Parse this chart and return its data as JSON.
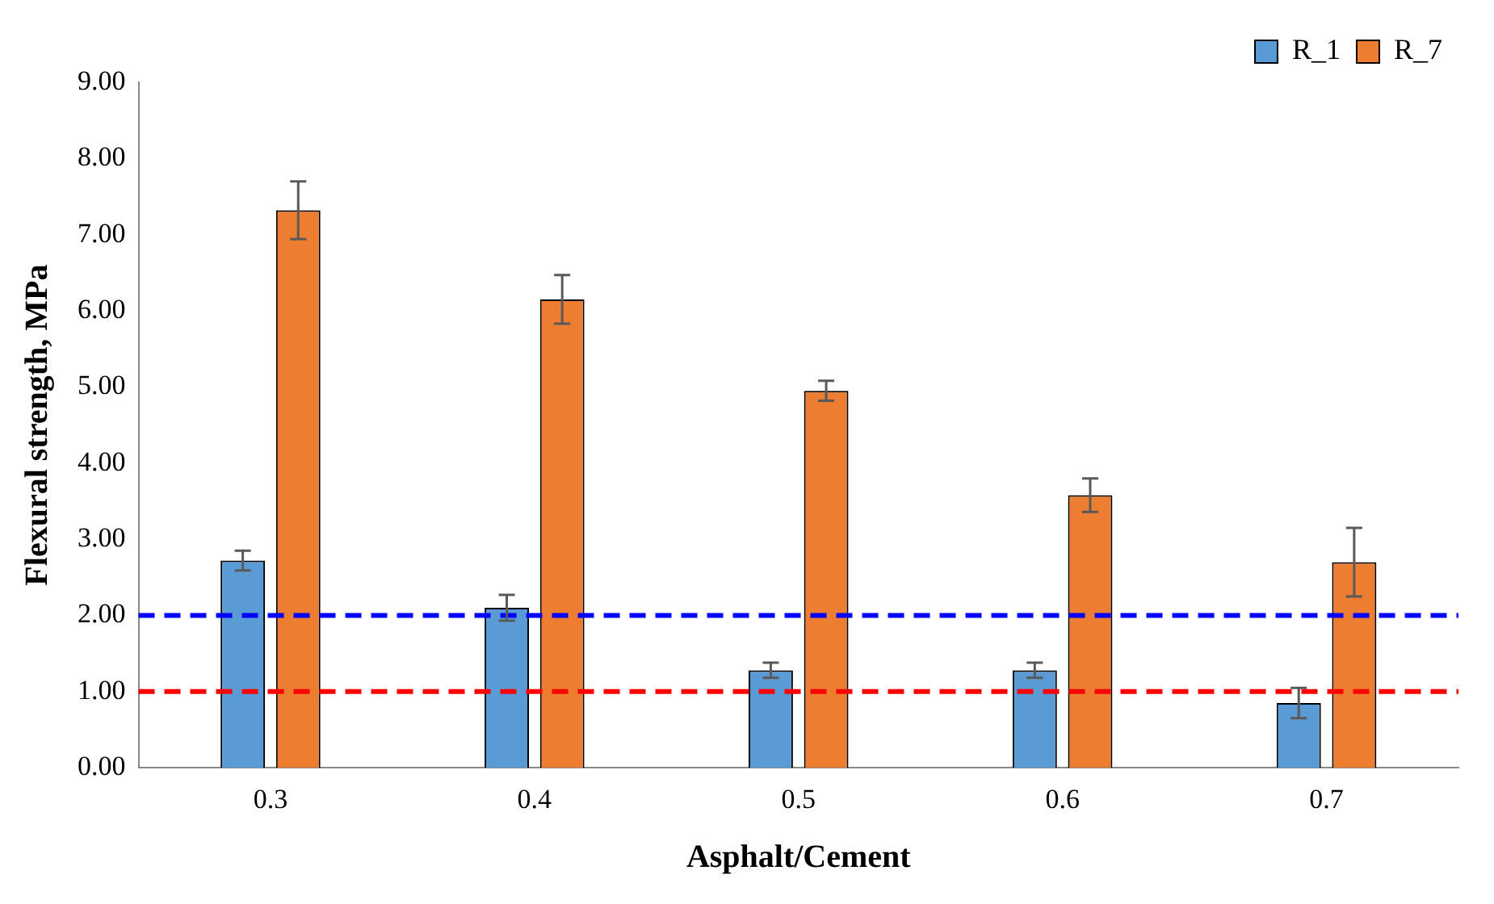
{
  "chart_data": {
    "type": "bar",
    "xlabel": "Asphalt/Cement",
    "ylabel": "Flexural strength, MPa",
    "categories": [
      "0.3",
      "0.4",
      "0.5",
      "0.6",
      "0.7"
    ],
    "series": [
      {
        "name": "R_1",
        "color": "#5b9bd5",
        "values": [
          2.72,
          2.1,
          1.28,
          1.28,
          0.85
        ],
        "errors": [
          0.13,
          0.17,
          0.1,
          0.1,
          0.2
        ]
      },
      {
        "name": "R_7",
        "color": "#ed7d31",
        "values": [
          7.32,
          6.15,
          4.95,
          3.58,
          2.7
        ],
        "errors": [
          0.38,
          0.32,
          0.13,
          0.22,
          0.45
        ]
      }
    ],
    "ylim": [
      0,
      9
    ],
    "yticks": [
      {
        "value": 0,
        "label": "0.00"
      },
      {
        "value": 1,
        "label": "1.00"
      },
      {
        "value": 2,
        "label": "2.00"
      },
      {
        "value": 3,
        "label": "3.00"
      },
      {
        "value": 4,
        "label": "4.00"
      },
      {
        "value": 5,
        "label": "5.00"
      },
      {
        "value": 6,
        "label": "6.00"
      },
      {
        "value": 7,
        "label": "7.00"
      },
      {
        "value": 8,
        "label": "8.00"
      },
      {
        "value": 9,
        "label": "9.00"
      }
    ],
    "ref_lines": [
      {
        "axis": "y",
        "value": 2,
        "color": "#0000ff",
        "line_style": "dashed"
      },
      {
        "axis": "y",
        "value": 1,
        "color": "#ff0000",
        "line_style": "dashed"
      }
    ],
    "legend": "top right",
    "grid": false
  }
}
